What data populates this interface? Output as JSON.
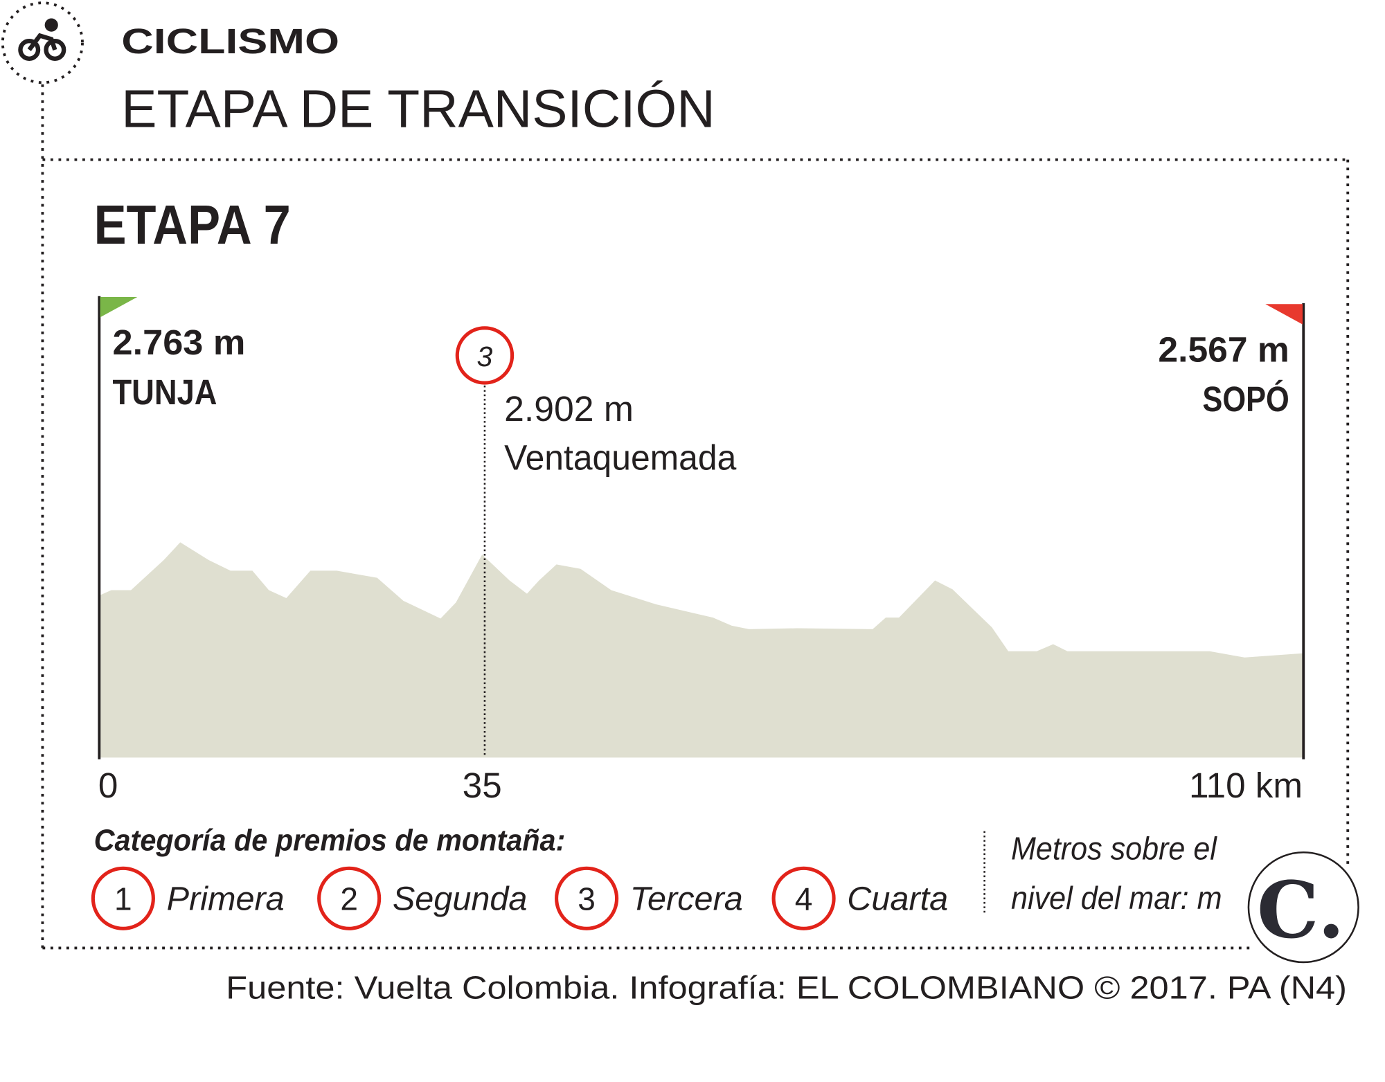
{
  "header": {
    "section": "CICLISMO",
    "title": "ETAPA DE TRANSICIÓN",
    "icon": "cyclist-icon"
  },
  "stage": {
    "title": "ETAPA 7"
  },
  "start": {
    "altitude": "2.763 m",
    "name": "TUNJA",
    "flag_color": "#7ab648"
  },
  "finish": {
    "altitude": "2.567 m",
    "name": "SOPÓ",
    "flag_color": "#e8392e"
  },
  "climb": {
    "category": "3",
    "altitude": "2.902 m",
    "name": "Ventaquemada"
  },
  "legend": {
    "title": "Categoría de premios de montaña:",
    "items": [
      {
        "num": "1",
        "label": "Primera"
      },
      {
        "num": "2",
        "label": "Segunda"
      },
      {
        "num": "3",
        "label": "Tercera"
      },
      {
        "num": "4",
        "label": "Cuarta"
      }
    ],
    "units_line1": "Metros sobre el",
    "units_line2": "nivel del mar: m"
  },
  "logo": "C.",
  "footer": "Fuente: Vuelta Colombia. Infografía: EL COLOMBIANO © 2017. PA (N4)",
  "colors": {
    "profile_fill": "#dfdfd0",
    "circle_red": "#e2231a",
    "text": "#231f20"
  },
  "chart_data": {
    "type": "area",
    "xlabel": "",
    "ylabel": "",
    "x_unit": "km",
    "y_unit": "m",
    "xlim": [
      0,
      110
    ],
    "x_ticks": [
      "0",
      "35",
      "110 km"
    ],
    "x_tick_values": [
      0,
      35,
      110
    ],
    "grid": false,
    "points": [
      [
        0,
        2763
      ],
      [
        1.1,
        2781
      ],
      [
        2.9,
        2781
      ],
      [
        5.9,
        2883
      ],
      [
        7.4,
        2943
      ],
      [
        10.0,
        2883
      ],
      [
        12.0,
        2847
      ],
      [
        14.0,
        2847
      ],
      [
        15.5,
        2781
      ],
      [
        17.1,
        2754
      ],
      [
        19.3,
        2847
      ],
      [
        21.7,
        2847
      ],
      [
        25.4,
        2823
      ],
      [
        27.8,
        2745
      ],
      [
        31.2,
        2685
      ],
      [
        32.6,
        2739
      ],
      [
        35,
        2902
      ],
      [
        37.5,
        2814
      ],
      [
        39.1,
        2769
      ],
      [
        40.2,
        2814
      ],
      [
        41.8,
        2868
      ],
      [
        44.0,
        2853
      ],
      [
        46.8,
        2781
      ],
      [
        50.9,
        2733
      ],
      [
        56.1,
        2688
      ],
      [
        57.8,
        2661
      ],
      [
        59.4,
        2649
      ],
      [
        63.8,
        2652
      ],
      [
        70.7,
        2649
      ],
      [
        71.9,
        2688
      ],
      [
        73.1,
        2688
      ],
      [
        76.4,
        2814
      ],
      [
        78.0,
        2784
      ],
      [
        81.6,
        2655
      ],
      [
        83.1,
        2574
      ],
      [
        85.7,
        2574
      ],
      [
        87.2,
        2598
      ],
      [
        88.5,
        2574
      ],
      [
        101.5,
        2574
      ],
      [
        104.7,
        2553
      ],
      [
        110,
        2567
      ]
    ]
  }
}
